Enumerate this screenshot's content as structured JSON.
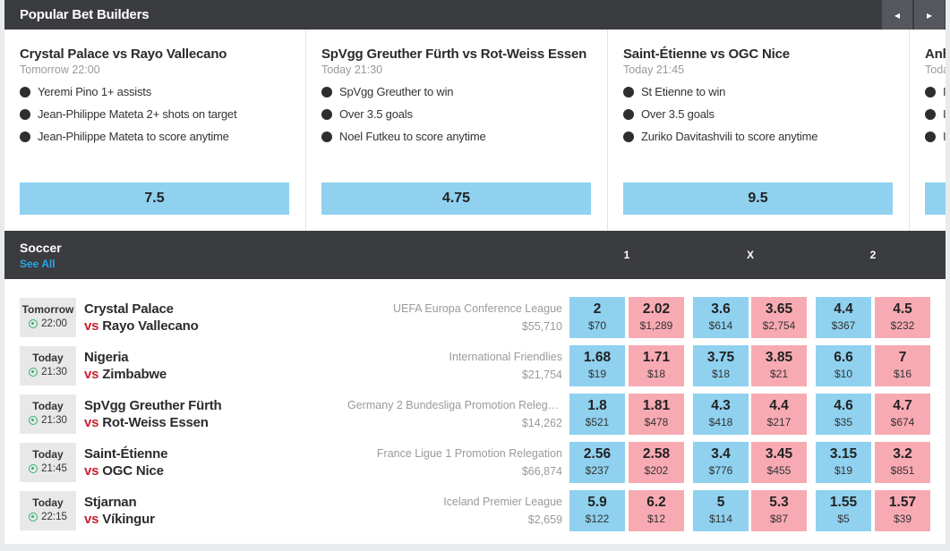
{
  "popular": {
    "title": "Popular Bet Builders",
    "prev_label": "◂",
    "next_label": "▸",
    "cards": [
      {
        "match": "Crystal Palace vs Rayo Vallecano",
        "time": "Tomorrow 22:00",
        "legs": [
          "Yeremi Pino 1+ assists",
          "Jean-Philippe Mateta 2+ shots on target",
          "Jean-Philippe Mateta to score anytime"
        ],
        "odds": "7.5"
      },
      {
        "match": "SpVgg Greuther Fürth vs Rot-Weiss Essen",
        "time": "Today 21:30",
        "legs": [
          "SpVgg Greuther to win",
          "Over 3.5 goals",
          "Noel Futkeu to score anytime"
        ],
        "odds": "4.75"
      },
      {
        "match": "Saint-Étienne vs OGC Nice",
        "time": "Today 21:45",
        "legs": [
          "St Etienne to win",
          "Over 3.5 goals",
          "Zuriko Davitashvili to score anytime"
        ],
        "odds": "9.5"
      },
      {
        "match": "Anhalt",
        "time": "Today",
        "legs": [
          "I",
          "I",
          "I"
        ],
        "odds": ""
      }
    ]
  },
  "soccer": {
    "title": "Soccer",
    "see_all": "See All",
    "columns": [
      "1",
      "X",
      "2"
    ],
    "vs_label": "vs",
    "rows": [
      {
        "day": "Tomorrow",
        "time": "22:00",
        "home": "Crystal Palace",
        "away": "Rayo Vallecano",
        "league": "UEFA Europa Conference League",
        "volume": "$55,710",
        "odds": [
          [
            "2",
            "$70"
          ],
          [
            "2.02",
            "$1,289"
          ],
          [
            "3.6",
            "$614"
          ],
          [
            "3.65",
            "$2,754"
          ],
          [
            "4.4",
            "$367"
          ],
          [
            "4.5",
            "$232"
          ]
        ]
      },
      {
        "day": "Today",
        "time": "21:30",
        "home": "Nigeria",
        "away": "Zimbabwe",
        "league": "International Friendlies",
        "volume": "$21,754",
        "odds": [
          [
            "1.68",
            "$19"
          ],
          [
            "1.71",
            "$18"
          ],
          [
            "3.75",
            "$18"
          ],
          [
            "3.85",
            "$21"
          ],
          [
            "6.6",
            "$10"
          ],
          [
            "7",
            "$16"
          ]
        ]
      },
      {
        "day": "Today",
        "time": "21:30",
        "home": "SpVgg Greuther Fürth",
        "away": "Rot-Weiss Essen",
        "league": "Germany 2 Bundesliga Promotion Relega...",
        "volume": "$14,262",
        "odds": [
          [
            "1.8",
            "$521"
          ],
          [
            "1.81",
            "$478"
          ],
          [
            "4.3",
            "$418"
          ],
          [
            "4.4",
            "$217"
          ],
          [
            "4.6",
            "$35"
          ],
          [
            "4.7",
            "$674"
          ]
        ]
      },
      {
        "day": "Today",
        "time": "21:45",
        "home": "Saint-Étienne",
        "away": "OGC Nice",
        "league": "France Ligue 1 Promotion Relegation",
        "volume": "$66,874",
        "odds": [
          [
            "2.56",
            "$237"
          ],
          [
            "2.58",
            "$202"
          ],
          [
            "3.4",
            "$776"
          ],
          [
            "3.45",
            "$455"
          ],
          [
            "3.15",
            "$19"
          ],
          [
            "3.2",
            "$851"
          ]
        ]
      },
      {
        "day": "Today",
        "time": "22:15",
        "home": "Stjarnan",
        "away": "Víkingur",
        "league": "Iceland Premier League",
        "volume": "$2,659",
        "odds": [
          [
            "5.9",
            "$122"
          ],
          [
            "6.2",
            "$12"
          ],
          [
            "5",
            "$114"
          ],
          [
            "5.3",
            "$87"
          ],
          [
            "1.55",
            "$5"
          ],
          [
            "1.57",
            "$39"
          ]
        ]
      }
    ]
  }
}
